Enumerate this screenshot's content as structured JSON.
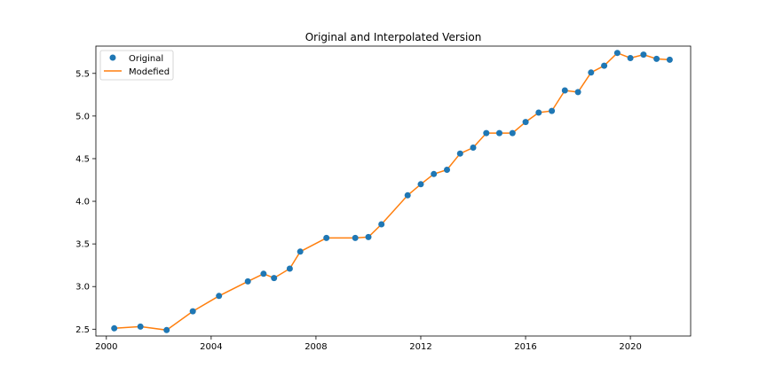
{
  "chart_data": {
    "type": "line",
    "title": "Original and Interpolated Version",
    "xlabel": "",
    "ylabel": "",
    "xlim": [
      1999.6,
      2022.3
    ],
    "ylim": [
      2.42,
      5.82
    ],
    "x_ticks": [
      2000,
      2004,
      2008,
      2012,
      2016,
      2020
    ],
    "y_ticks": [
      2.5,
      3.0,
      3.5,
      4.0,
      4.5,
      5.0,
      5.5
    ],
    "y_tick_labels": [
      "2.5",
      "3.0",
      "3.5",
      "4.0",
      "4.5",
      "5.0",
      "5.5"
    ],
    "grid": false,
    "legend_position": "upper-left",
    "x": [
      2000.3,
      2001.3,
      2002.3,
      2003.3,
      2004.3,
      2005.4,
      2006.0,
      2006.4,
      2007.0,
      2007.4,
      2008.4,
      2009.5,
      2010.0,
      2010.5,
      2011.5,
      2012.0,
      2012.5,
      2013.0,
      2013.5,
      2014.0,
      2014.5,
      2015.0,
      2015.5,
      2016.0,
      2016.5,
      2017.0,
      2017.5,
      2018.0,
      2018.5,
      2019.0,
      2019.5,
      2020.0,
      2020.5,
      2021.0,
      2021.5
    ],
    "series": [
      {
        "name": "Original",
        "style": "markers",
        "color": "#1f77b4",
        "values": [
          2.51,
          2.53,
          2.49,
          2.71,
          2.89,
          3.06,
          3.15,
          3.1,
          3.21,
          3.41,
          3.57,
          3.57,
          3.58,
          3.73,
          4.07,
          4.2,
          4.32,
          4.37,
          4.56,
          4.63,
          4.8,
          4.8,
          4.8,
          4.93,
          5.04,
          5.06,
          5.3,
          5.28,
          5.51,
          5.59,
          5.74,
          5.68,
          5.72,
          5.67,
          5.66
        ]
      },
      {
        "name": "Modefied",
        "style": "line",
        "color": "#ff7f0e",
        "values": [
          2.51,
          2.53,
          2.49,
          2.71,
          2.89,
          3.06,
          3.15,
          3.1,
          3.21,
          3.41,
          3.57,
          3.57,
          3.58,
          3.73,
          4.07,
          4.2,
          4.32,
          4.37,
          4.56,
          4.63,
          4.8,
          4.8,
          4.8,
          4.93,
          5.04,
          5.06,
          5.3,
          5.28,
          5.51,
          5.59,
          5.74,
          5.68,
          5.72,
          5.67,
          5.66
        ]
      }
    ]
  }
}
